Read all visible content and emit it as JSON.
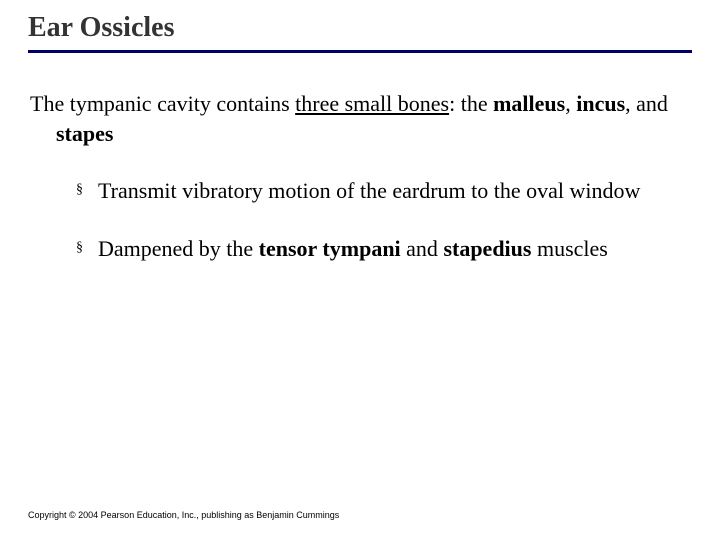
{
  "colors": {
    "divider": "#000066",
    "title_text": "#333333",
    "body_text": "#000000",
    "background": "#ffffff"
  },
  "typography": {
    "title_fontsize": 28,
    "body_fontsize": 22,
    "copyright_fontsize": 9,
    "title_weight": "bold",
    "family_body": "Times New Roman",
    "family_copyright": "Arial"
  },
  "title": "Ear Ossicles",
  "intro": {
    "t1": "The tympanic cavity contains ",
    "t2": "three small bones",
    "t3": ": the ",
    "t4": "malleus",
    "t5": ", ",
    "t6": "incus",
    "t7": ", and ",
    "t8": "stapes"
  },
  "bullets": [
    {
      "marker": "§",
      "t1": "Transmit vibratory motion of the eardrum to the oval window"
    },
    {
      "marker": "§",
      "t1": "Dampened by the ",
      "t2": "tensor tympani",
      "t3": " and ",
      "t4": "stapedius",
      "t5": " muscles"
    }
  ],
  "copyright": "Copyright © 2004 Pearson Education, Inc., publishing as Benjamin Cummings"
}
